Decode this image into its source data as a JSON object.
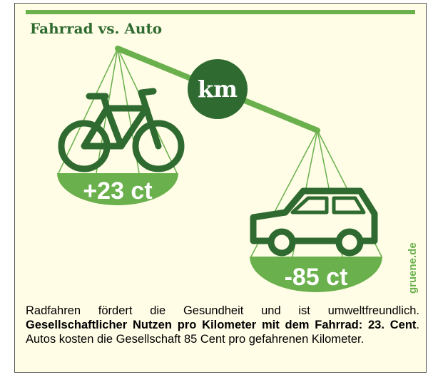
{
  "title": "Fahrrad vs. Auto",
  "scale": {
    "center": "km",
    "left": "+23 ct",
    "right": "-85 ct"
  },
  "watermark": "gruene.de",
  "caption": {
    "parts": [
      "Radfahren fördert die Gesundheit und ist umweltfreundlich. ",
      "Gesellschaftlicher Nutzen pro Kilometer mit dem Fahrrad: 23. Cent",
      ". Autos kosten die Gesellschaft 85 Cent pro gefahrenen Kilometer."
    ]
  }
}
